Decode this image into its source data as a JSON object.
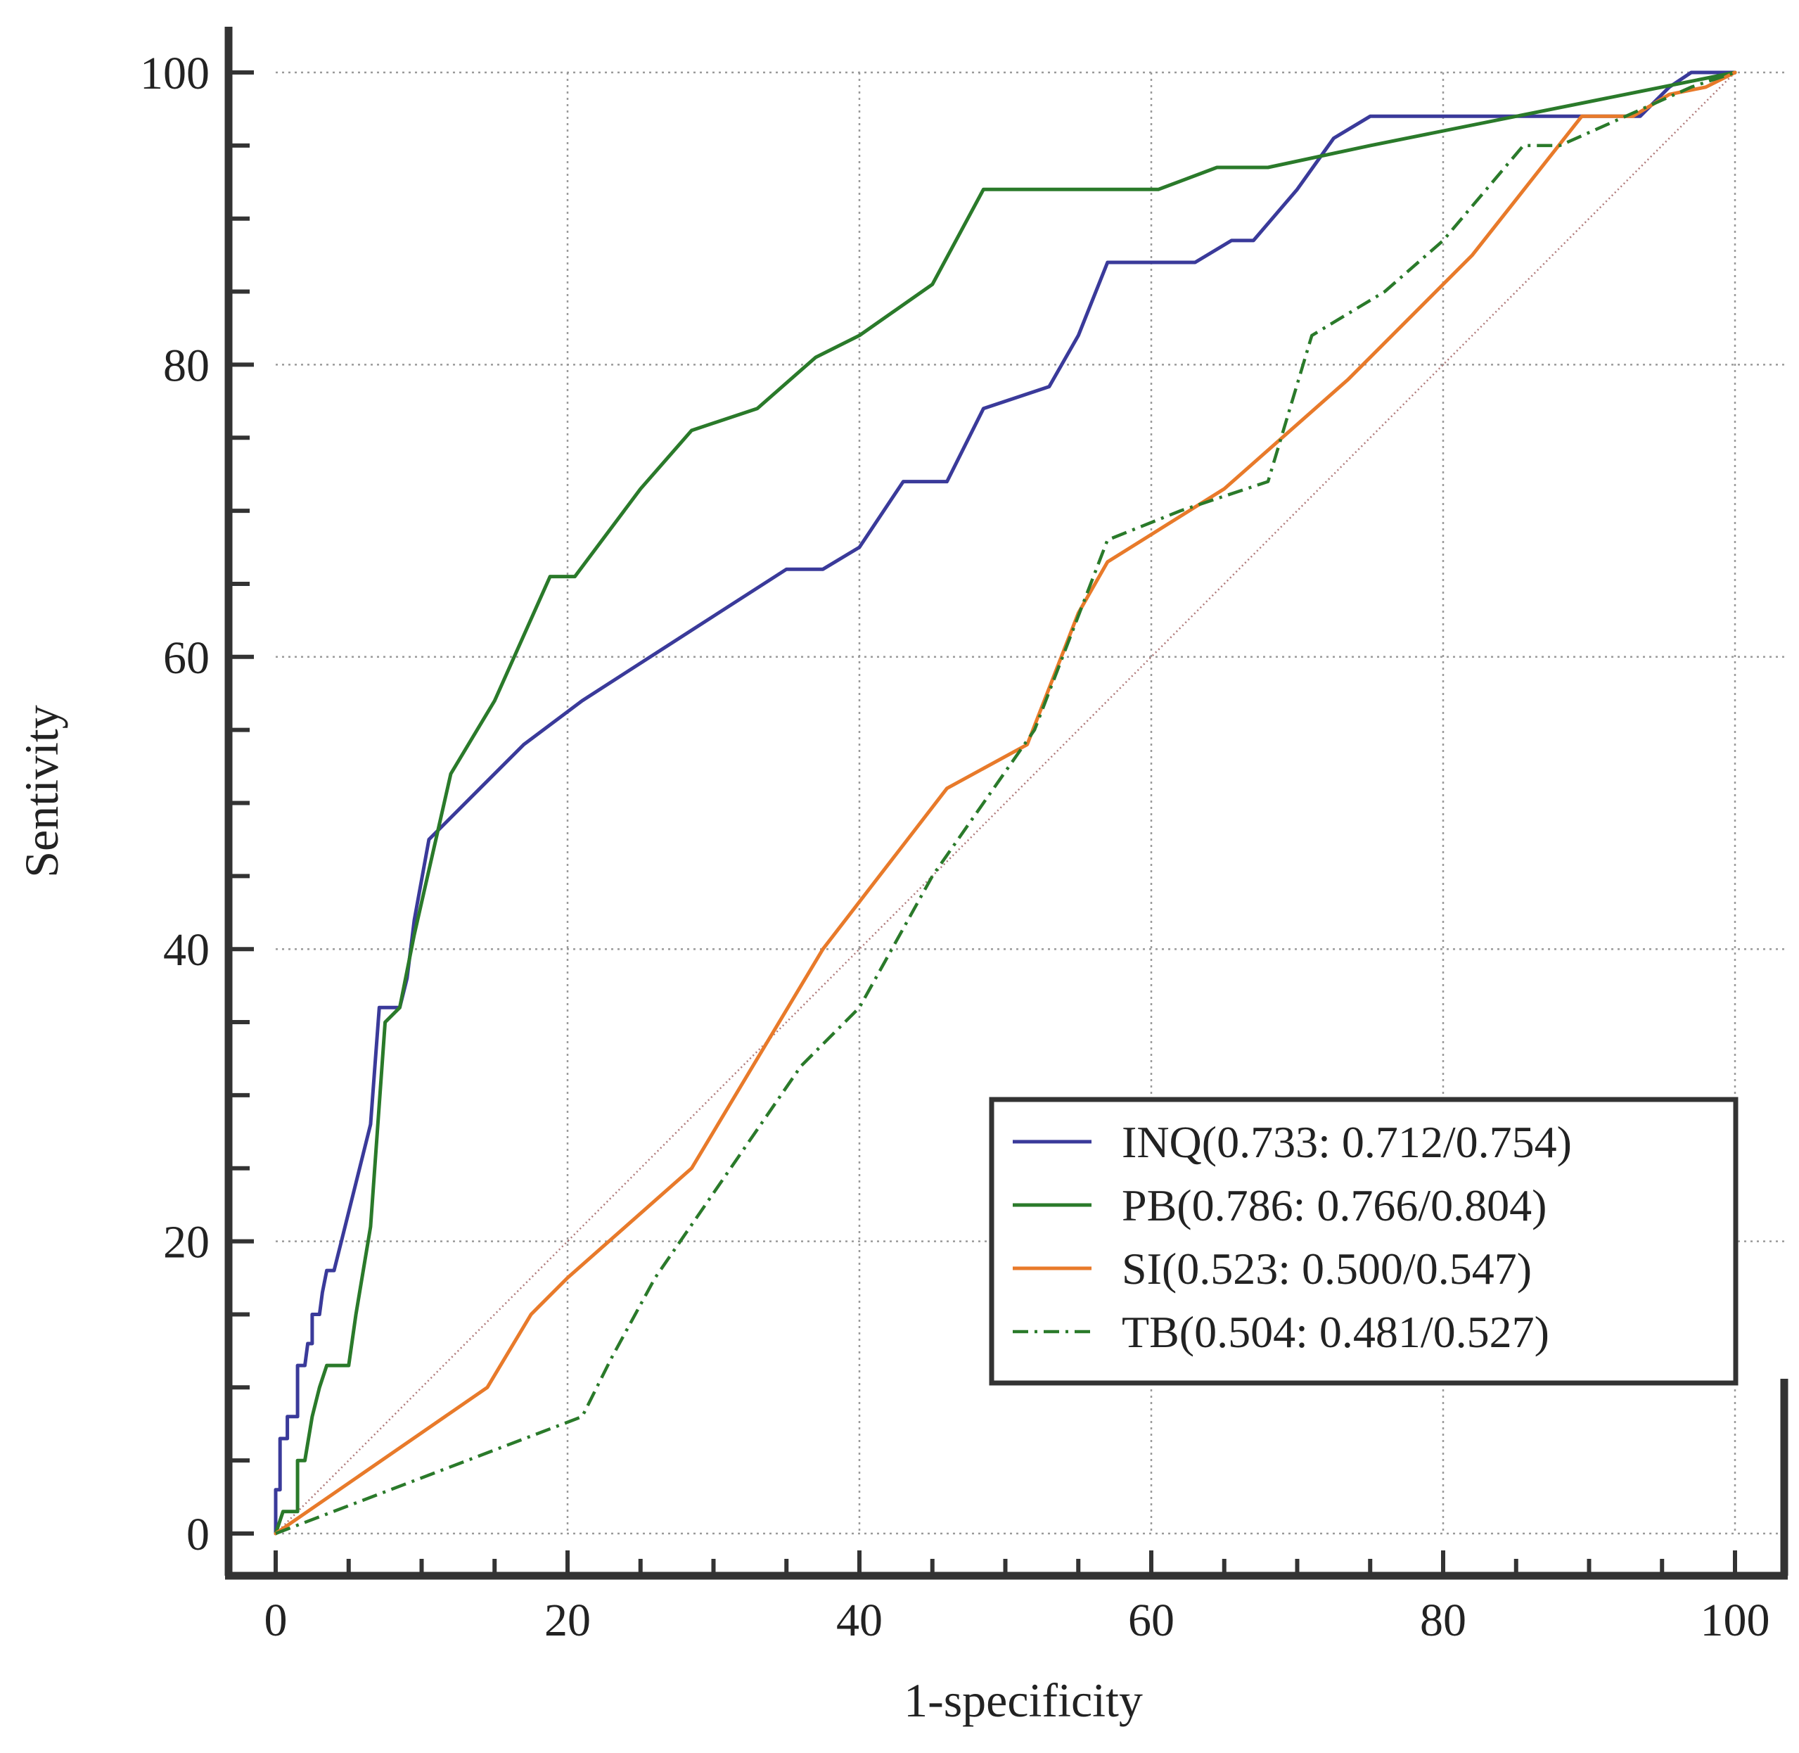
{
  "chart_data": {
    "type": "line",
    "title": "",
    "xlabel": "1-specificity",
    "ylabel": "Sentivity",
    "xlim": [
      0,
      100
    ],
    "ylim": [
      0,
      100
    ],
    "xticks": [
      0,
      20,
      40,
      60,
      80,
      100
    ],
    "yticks": [
      0,
      20,
      40,
      60,
      80,
      100
    ],
    "minor_tick_step": 5,
    "grid": true,
    "legend_position": "bottom-right",
    "reference_line": {
      "name": "diagonal",
      "color": "#b07a7a",
      "points": [
        [
          0,
          0
        ],
        [
          100,
          100
        ]
      ]
    },
    "series": [
      {
        "name": "INQ",
        "legend_label": "INQ(0.733: 0.712/0.754)",
        "color": "#3a3a9a",
        "dash": "solid",
        "points": [
          [
            0,
            0
          ],
          [
            0,
            3
          ],
          [
            0.3,
            3
          ],
          [
            0.3,
            6.5
          ],
          [
            0.8,
            6.5
          ],
          [
            0.8,
            8
          ],
          [
            1.5,
            8
          ],
          [
            1.5,
            11.5
          ],
          [
            2,
            11.5
          ],
          [
            2.2,
            13
          ],
          [
            2.5,
            13
          ],
          [
            2.5,
            15
          ],
          [
            3,
            15
          ],
          [
            3.2,
            16.5
          ],
          [
            3.5,
            18
          ],
          [
            4,
            18
          ],
          [
            4.5,
            20
          ],
          [
            6,
            26
          ],
          [
            6.5,
            28
          ],
          [
            7.1,
            36
          ],
          [
            8.5,
            36
          ],
          [
            9,
            38
          ],
          [
            9.5,
            42
          ],
          [
            10.5,
            47.5
          ],
          [
            14,
            51
          ],
          [
            17,
            54
          ],
          [
            19,
            55.5
          ],
          [
            21,
            57
          ],
          [
            28,
            61.5
          ],
          [
            35,
            66
          ],
          [
            37.5,
            66
          ],
          [
            40,
            67.5
          ],
          [
            43,
            72
          ],
          [
            46,
            72
          ],
          [
            48.5,
            77
          ],
          [
            53,
            78.5
          ],
          [
            55,
            82
          ],
          [
            57,
            87
          ],
          [
            63,
            87
          ],
          [
            65.5,
            88.5
          ],
          [
            67,
            88.5
          ],
          [
            70,
            92
          ],
          [
            72.5,
            95.5
          ],
          [
            75,
            97
          ],
          [
            80,
            97
          ],
          [
            93.5,
            97
          ],
          [
            95.5,
            99
          ],
          [
            97,
            100
          ],
          [
            100,
            100
          ]
        ]
      },
      {
        "name": "PB",
        "legend_label": "PB(0.786: 0.766/0.804)",
        "color": "#2a7a2a",
        "dash": "solid",
        "points": [
          [
            0,
            0
          ],
          [
            0.5,
            1.5
          ],
          [
            1.5,
            1.5
          ],
          [
            1.5,
            5
          ],
          [
            2,
            5
          ],
          [
            2.5,
            8
          ],
          [
            3,
            10
          ],
          [
            3.5,
            11.5
          ],
          [
            5,
            11.5
          ],
          [
            5.5,
            15
          ],
          [
            6.5,
            21
          ],
          [
            7.5,
            35
          ],
          [
            8.5,
            36
          ],
          [
            9.5,
            41
          ],
          [
            12,
            52
          ],
          [
            15,
            57
          ],
          [
            18.8,
            65.5
          ],
          [
            20.5,
            65.5
          ],
          [
            25,
            71.5
          ],
          [
            28.5,
            75.5
          ],
          [
            33,
            77
          ],
          [
            37,
            80.5
          ],
          [
            40,
            82
          ],
          [
            45,
            85.5
          ],
          [
            48.5,
            92
          ],
          [
            60.5,
            92
          ],
          [
            64.5,
            93.5
          ],
          [
            68,
            93.5
          ],
          [
            75,
            95
          ],
          [
            100,
            100
          ]
        ]
      },
      {
        "name": "SI",
        "legend_label": "SI(0.523: 0.500/0.547)",
        "color": "#e87a2a",
        "dash": "solid",
        "points": [
          [
            0,
            0
          ],
          [
            14.5,
            10
          ],
          [
            17.5,
            15
          ],
          [
            20,
            17.5
          ],
          [
            28.5,
            25
          ],
          [
            37.5,
            40
          ],
          [
            46,
            51
          ],
          [
            51.5,
            54
          ],
          [
            55,
            63
          ],
          [
            57,
            66.5
          ],
          [
            65,
            71.5
          ],
          [
            73.5,
            79
          ],
          [
            82,
            87.5
          ],
          [
            89.5,
            97
          ],
          [
            93,
            97
          ],
          [
            95.5,
            98.5
          ],
          [
            98,
            99
          ],
          [
            100,
            100
          ]
        ]
      },
      {
        "name": "TB",
        "legend_label": "TB(0.504: 0.481/0.527)",
        "color": "#2a7a2a",
        "dash": "dashdot",
        "points": [
          [
            0,
            0
          ],
          [
            21,
            8
          ],
          [
            23,
            12
          ],
          [
            26,
            17.5
          ],
          [
            36,
            32
          ],
          [
            40,
            36
          ],
          [
            45,
            45
          ],
          [
            52,
            55
          ],
          [
            57,
            68
          ],
          [
            62,
            70
          ],
          [
            68,
            72
          ],
          [
            71,
            82
          ],
          [
            76,
            85
          ],
          [
            80,
            88.5
          ],
          [
            85.5,
            95
          ],
          [
            88,
            95
          ],
          [
            97,
            99
          ],
          [
            100,
            100
          ]
        ]
      }
    ]
  }
}
